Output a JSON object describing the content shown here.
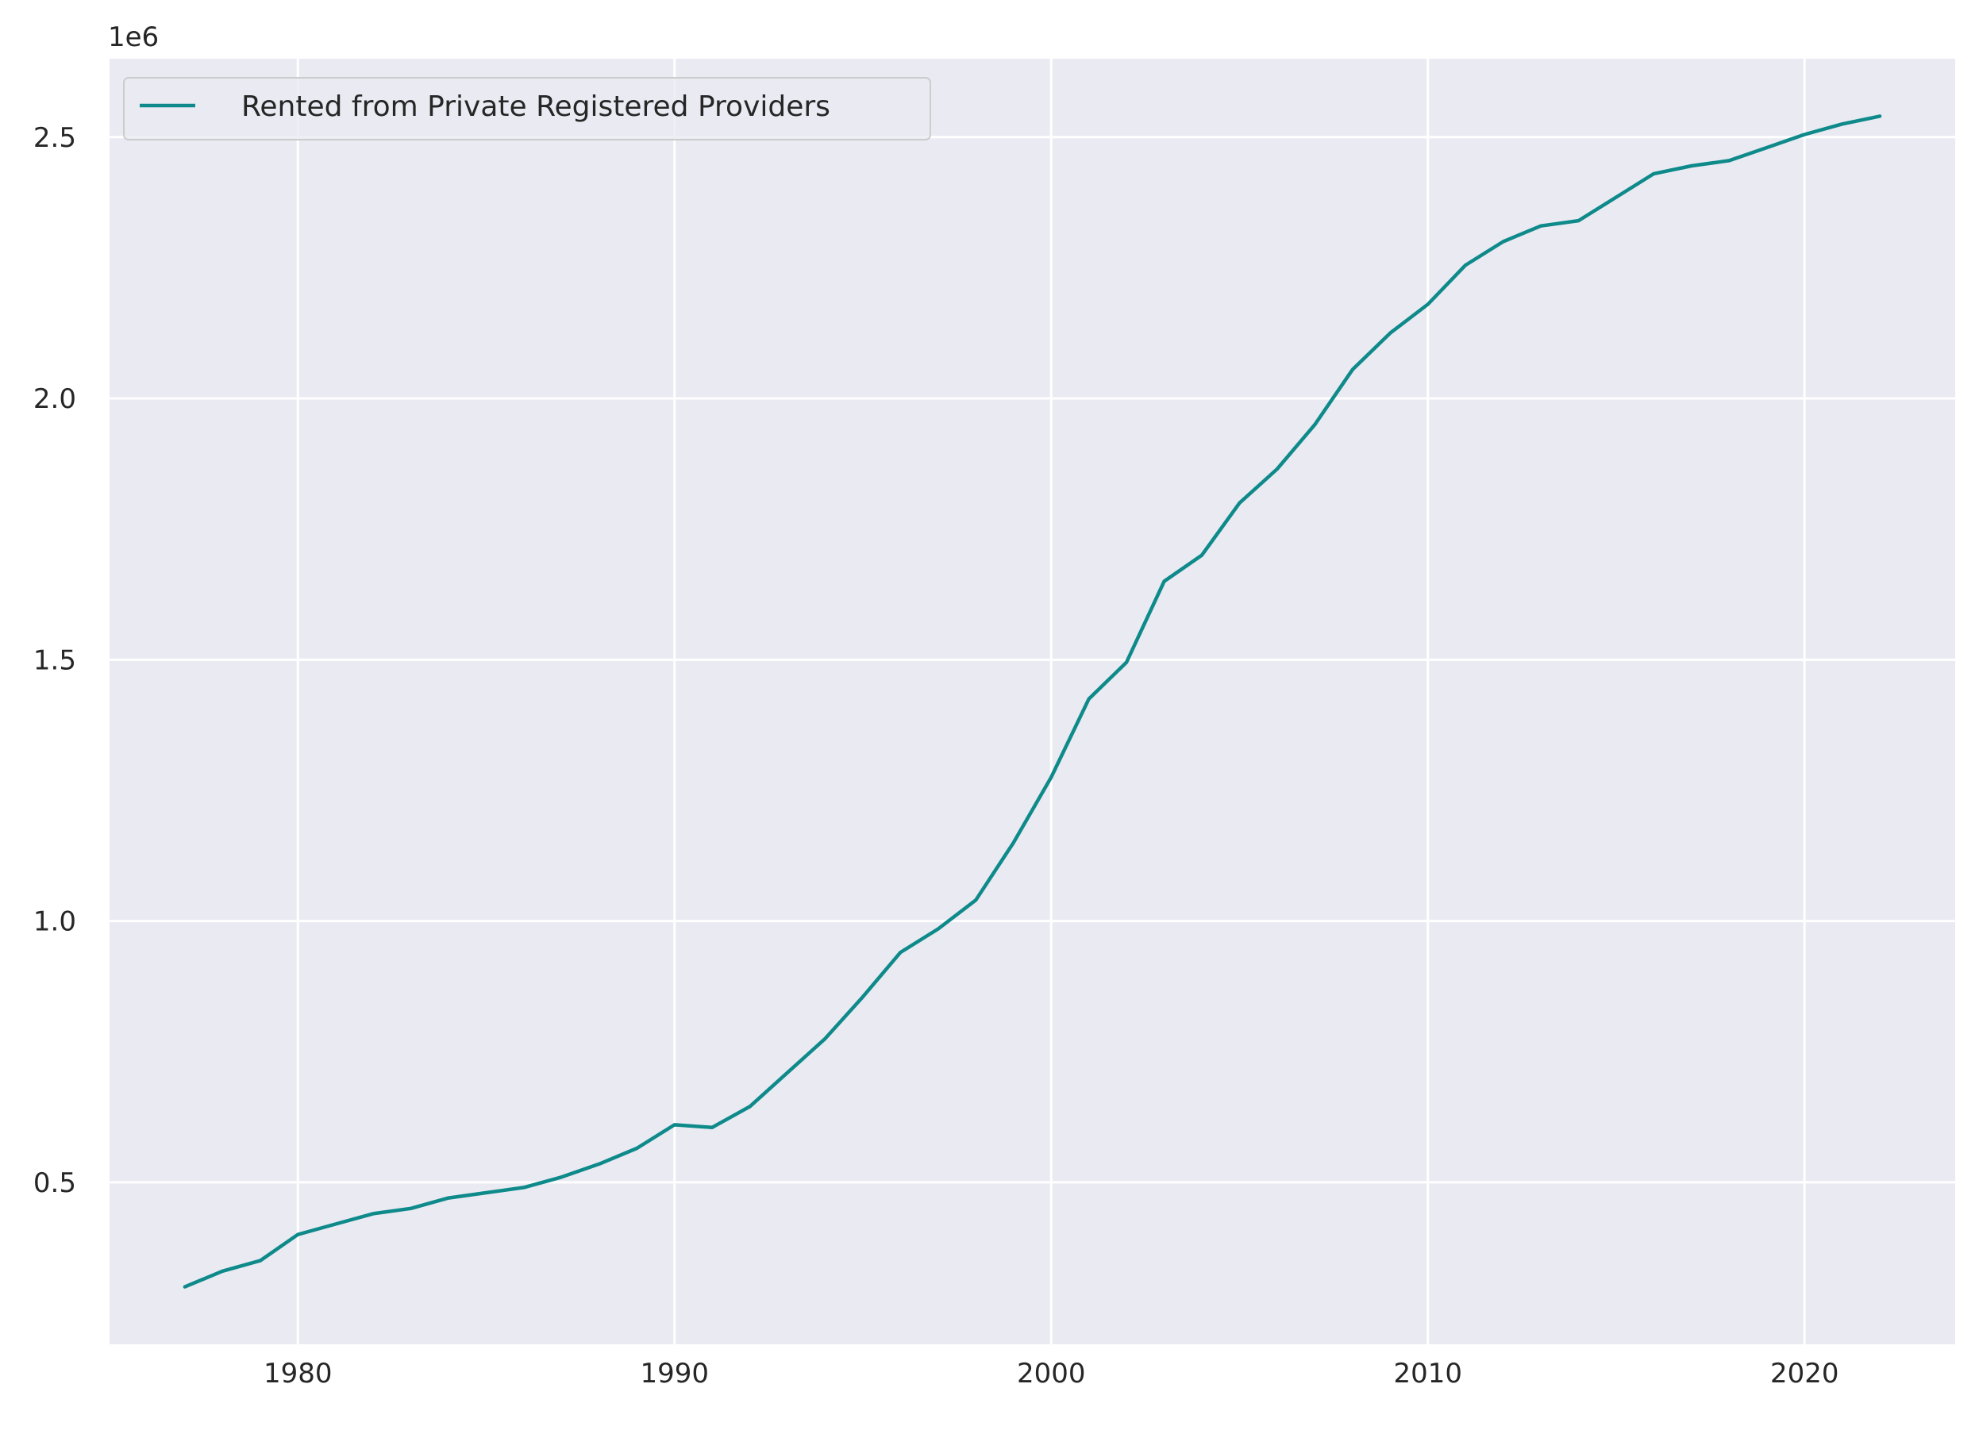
{
  "chart_data": {
    "type": "line",
    "x_ticks": [
      1980,
      1990,
      2000,
      2010,
      2020
    ],
    "x_tick_labels": [
      "1980",
      "1990",
      "2000",
      "2010",
      "2020"
    ],
    "y_ticks": [
      0.5,
      1.0,
      1.5,
      2.0,
      2.5
    ],
    "y_tick_labels": [
      "0.5",
      "1.0",
      "1.5",
      "2.0",
      "2.5"
    ],
    "y_offset_label": "1e6",
    "xlim": [
      1975,
      2024
    ],
    "ylim": [
      0.19,
      2.65
    ],
    "grid": true,
    "legend_position": "top-left",
    "background_color": "#eaeaf2",
    "grid_color": "#ffffff",
    "series": [
      {
        "name": "Rented from Private Registered Providers",
        "color": "#0e8a8a",
        "x": [
          1977,
          1978,
          1979,
          1980,
          1981,
          1982,
          1983,
          1984,
          1985,
          1986,
          1987,
          1988,
          1989,
          1990,
          1991,
          1992,
          1993,
          1994,
          1995,
          1996,
          1997,
          1998,
          1999,
          2000,
          2001,
          2002,
          2003,
          2004,
          2005,
          2006,
          2007,
          2008,
          2009,
          2010,
          2011,
          2012,
          2013,
          2014,
          2015,
          2016,
          2017,
          2018,
          2019,
          2020,
          2021,
          2022
        ],
        "values": [
          0.3,
          0.33,
          0.35,
          0.4,
          0.42,
          0.44,
          0.45,
          0.47,
          0.48,
          0.49,
          0.51,
          0.535,
          0.565,
          0.61,
          0.605,
          0.645,
          0.71,
          0.775,
          0.855,
          0.94,
          0.985,
          1.04,
          1.15,
          1.275,
          1.425,
          1.495,
          1.65,
          1.7,
          1.8,
          1.865,
          1.95,
          2.055,
          2.125,
          2.18,
          2.255,
          2.3,
          2.33,
          2.34,
          2.385,
          2.43,
          2.445,
          2.455,
          2.48,
          2.505,
          2.525,
          2.54
        ]
      }
    ]
  }
}
